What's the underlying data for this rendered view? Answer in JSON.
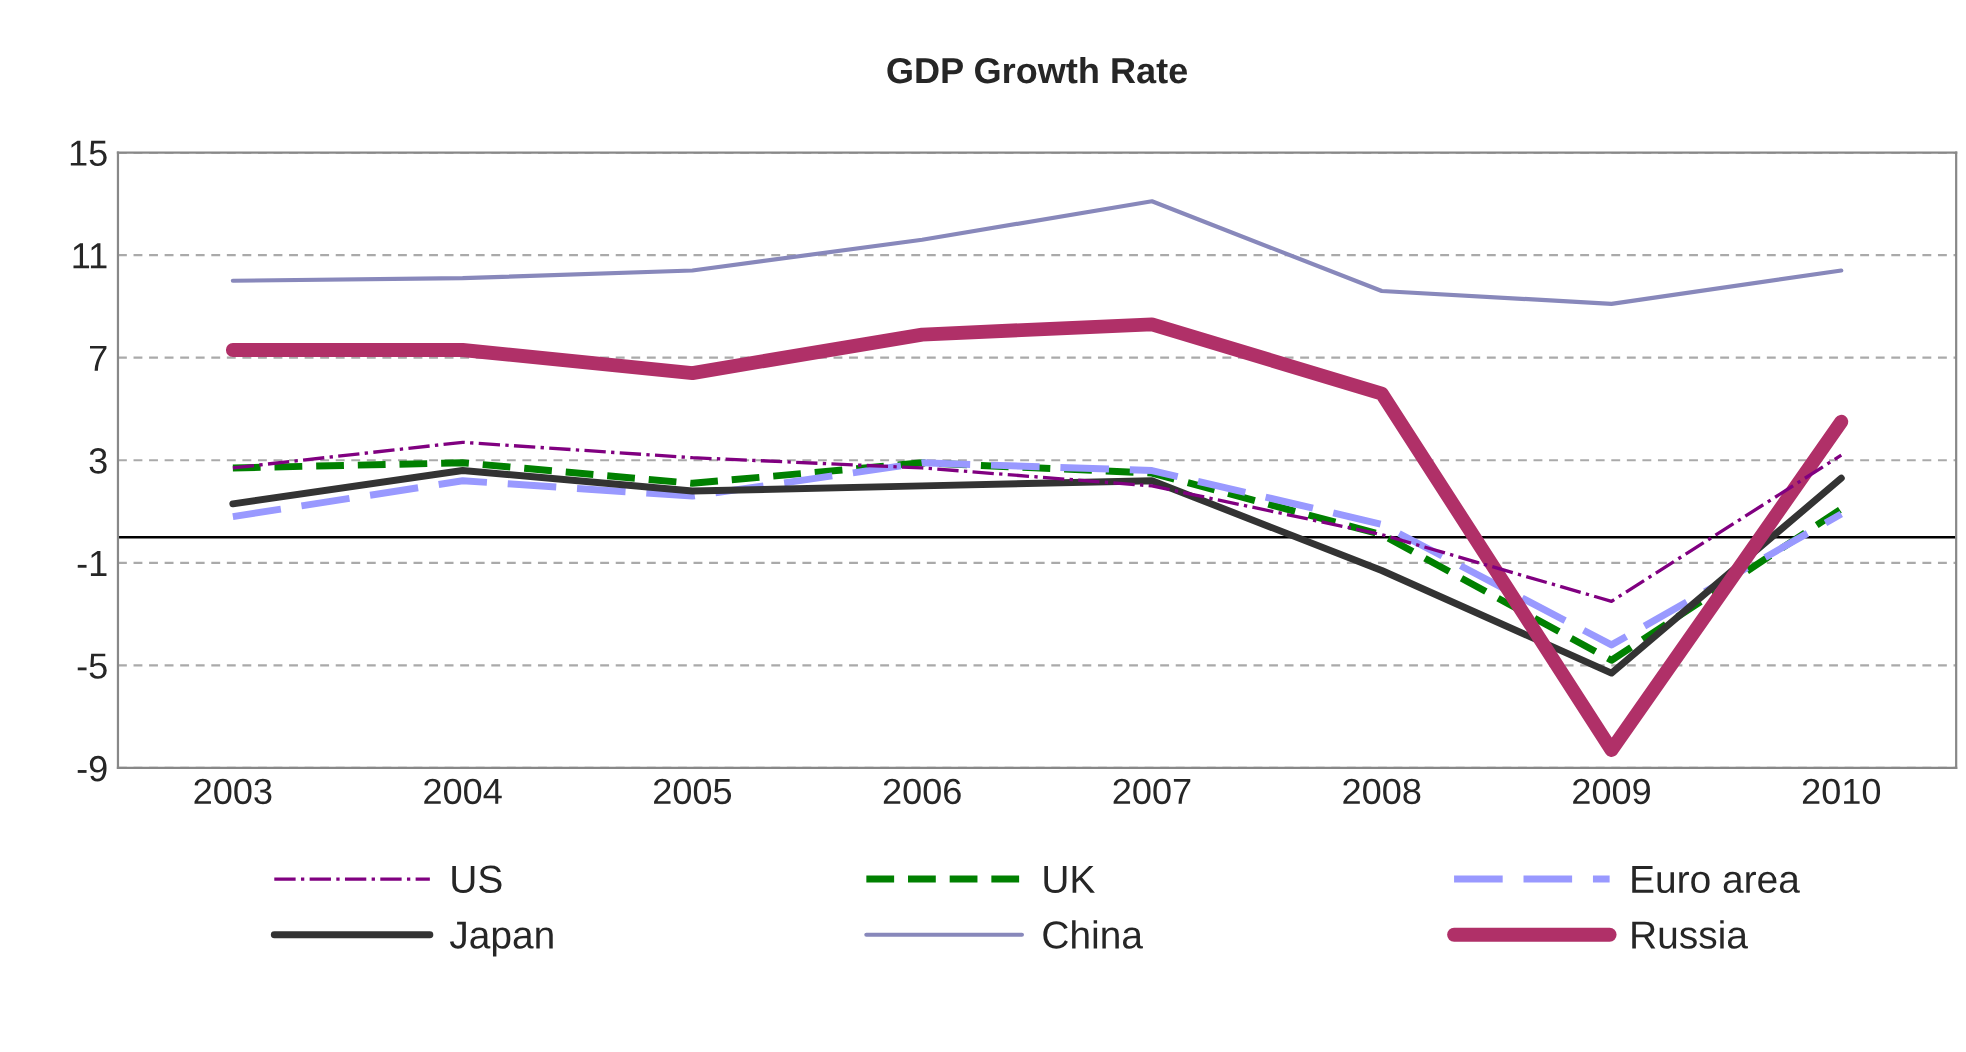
{
  "chart_data": {
    "type": "line",
    "title": "GDP Growth Rate",
    "categories": [
      "2003",
      "2004",
      "2005",
      "2006",
      "2007",
      "2008",
      "2009",
      "2010"
    ],
    "series": [
      {
        "name": "US",
        "color": "#800080",
        "line_style": "dashdot",
        "values": [
          2.7,
          3.7,
          3.1,
          2.7,
          2.0,
          0.1,
          -2.5,
          3.2
        ]
      },
      {
        "name": "UK",
        "color": "#008000",
        "line_style": "dashed",
        "values": [
          2.7,
          2.9,
          2.1,
          2.9,
          2.5,
          0.1,
          -4.8,
          1.1
        ]
      },
      {
        "name": "Euro area",
        "color": "#9999ff",
        "line_style": "dashed",
        "values": [
          0.8,
          2.2,
          1.6,
          2.9,
          2.6,
          0.5,
          -4.2,
          0.9
        ]
      },
      {
        "name": "Japan",
        "color": "#333333",
        "line_style": "solid",
        "values": [
          1.3,
          2.6,
          1.8,
          2.0,
          2.2,
          -1.3,
          -5.3,
          2.3
        ]
      },
      {
        "name": "China",
        "color": "#8888bb",
        "line_style": "solid",
        "values": [
          10.0,
          10.1,
          10.4,
          11.6,
          13.1,
          9.6,
          9.1,
          10.4
        ]
      },
      {
        "name": "Russia",
        "color": "#b03068",
        "line_style": "solid",
        "values": [
          7.3,
          7.3,
          6.4,
          7.9,
          8.3,
          5.6,
          -8.3,
          4.5
        ]
      }
    ],
    "ylim": [
      -9,
      15
    ],
    "yticks": [
      -9,
      -5,
      -1,
      3,
      7,
      11,
      15
    ],
    "grid": "y",
    "legend": "bottom",
    "marker": "none",
    "ref_lines": [
      {
        "axis": "y",
        "value": 0,
        "color": "#000000"
      }
    ]
  }
}
